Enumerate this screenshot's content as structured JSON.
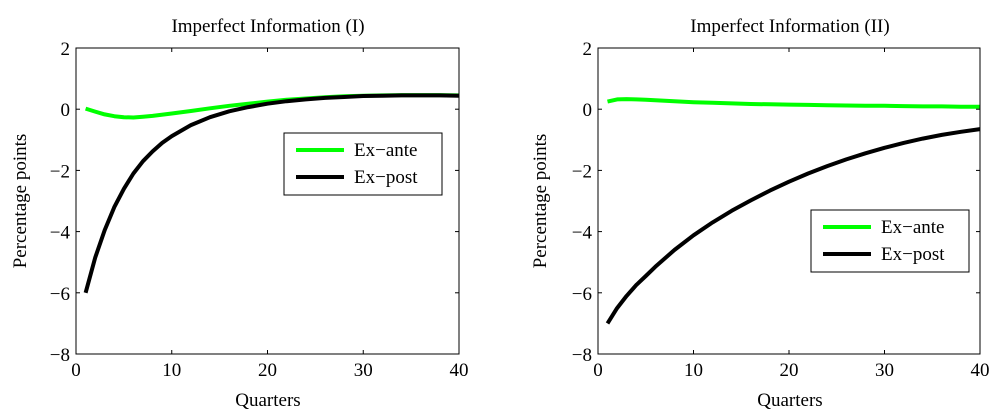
{
  "chart_data": [
    {
      "type": "line",
      "title": "Imperfect Information (I)",
      "xlabel": "Quarters",
      "ylabel": "Percentage points",
      "xlim": [
        0,
        40
      ],
      "ylim": [
        -8,
        2
      ],
      "xticks": [
        0,
        10,
        20,
        30,
        40
      ],
      "yticks": [
        2,
        0,
        -2,
        -4,
        -6,
        -8
      ],
      "grid": false,
      "legend_position": "center-right",
      "series": [
        {
          "name": "Ex−ante",
          "color": "#00ff00",
          "x": [
            1,
            2,
            3,
            4,
            5,
            6,
            7,
            8,
            10,
            12,
            14,
            16,
            18,
            20,
            22,
            24,
            26,
            28,
            30,
            32,
            34,
            36,
            38,
            40
          ],
          "y": [
            0.02,
            -0.08,
            -0.17,
            -0.23,
            -0.26,
            -0.27,
            -0.25,
            -0.22,
            -0.14,
            -0.06,
            0.03,
            0.11,
            0.18,
            0.25,
            0.31,
            0.35,
            0.39,
            0.42,
            0.44,
            0.45,
            0.46,
            0.46,
            0.46,
            0.45
          ]
        },
        {
          "name": "Ex−post",
          "color": "#000000",
          "x": [
            1,
            2,
            3,
            4,
            5,
            6,
            7,
            8,
            9,
            10,
            12,
            14,
            16,
            18,
            20,
            22,
            24,
            26,
            28,
            30,
            32,
            34,
            36,
            38,
            40
          ],
          "y": [
            -6.0,
            -4.85,
            -3.95,
            -3.2,
            -2.6,
            -2.1,
            -1.7,
            -1.38,
            -1.1,
            -0.88,
            -0.52,
            -0.26,
            -0.07,
            0.07,
            0.18,
            0.26,
            0.32,
            0.37,
            0.4,
            0.43,
            0.44,
            0.45,
            0.45,
            0.45,
            0.44
          ]
        }
      ]
    },
    {
      "type": "line",
      "title": "Imperfect Information (II)",
      "xlabel": "Quarters",
      "ylabel": "Percentage points",
      "xlim": [
        0,
        40
      ],
      "ylim": [
        -8,
        2
      ],
      "xticks": [
        0,
        10,
        20,
        30,
        40
      ],
      "yticks": [
        2,
        0,
        -2,
        -4,
        -6,
        -8
      ],
      "grid": false,
      "legend_position": "lower-right",
      "series": [
        {
          "name": "Ex−ante",
          "color": "#00ff00",
          "x": [
            1,
            2,
            3,
            4,
            5,
            6,
            8,
            10,
            12,
            14,
            16,
            18,
            20,
            22,
            24,
            26,
            28,
            30,
            32,
            34,
            36,
            38,
            40
          ],
          "y": [
            0.25,
            0.32,
            0.33,
            0.32,
            0.31,
            0.29,
            0.26,
            0.23,
            0.21,
            0.19,
            0.17,
            0.16,
            0.15,
            0.14,
            0.13,
            0.12,
            0.11,
            0.11,
            0.1,
            0.09,
            0.09,
            0.08,
            0.08
          ]
        },
        {
          "name": "Ex−post",
          "color": "#000000",
          "x": [
            1,
            2,
            3,
            4,
            5,
            6,
            8,
            10,
            12,
            14,
            16,
            18,
            20,
            22,
            24,
            26,
            28,
            30,
            32,
            34,
            36,
            38,
            40
          ],
          "y": [
            -7.0,
            -6.5,
            -6.1,
            -5.75,
            -5.45,
            -5.15,
            -4.6,
            -4.12,
            -3.7,
            -3.32,
            -2.98,
            -2.66,
            -2.37,
            -2.1,
            -1.86,
            -1.64,
            -1.44,
            -1.26,
            -1.1,
            -0.96,
            -0.84,
            -0.74,
            -0.65
          ]
        }
      ]
    }
  ]
}
